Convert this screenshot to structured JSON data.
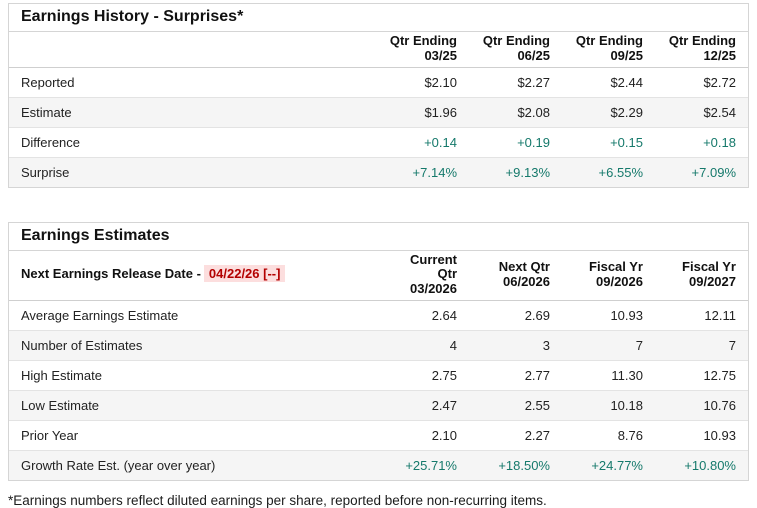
{
  "colors": {
    "positive_green": "#15796b",
    "alert_red": "#b30000",
    "alert_red_bg": "#fcdede",
    "row_alt_bg": "#f5f5f5",
    "border": "#d5d5d5"
  },
  "surprises": {
    "title": "Earnings History - Surprises*",
    "columns": [
      {
        "line1": "Qtr Ending",
        "line2": "03/25"
      },
      {
        "line1": "Qtr Ending",
        "line2": "06/25"
      },
      {
        "line1": "Qtr Ending",
        "line2": "09/25"
      },
      {
        "line1": "Qtr Ending",
        "line2": "12/25"
      }
    ],
    "rows": [
      {
        "label": "Reported",
        "values": [
          "$2.10",
          "$2.27",
          "$2.44",
          "$2.72"
        ]
      },
      {
        "label": "Estimate",
        "values": [
          "$1.96",
          "$2.08",
          "$2.29",
          "$2.54"
        ]
      },
      {
        "label": "Difference",
        "values": [
          "+0.14",
          "+0.19",
          "+0.15",
          "+0.18"
        ]
      },
      {
        "label": "Surprise",
        "values": [
          "+7.14%",
          "+9.13%",
          "+6.55%",
          "+7.09%"
        ]
      }
    ]
  },
  "estimates": {
    "title": "Earnings Estimates",
    "release_label": "Next Earnings Release Date -",
    "release_date": "04/22/26 [--]",
    "columns": [
      {
        "line1": "Current Qtr",
        "line2": "03/2026"
      },
      {
        "line1": "Next Qtr",
        "line2": "06/2026"
      },
      {
        "line1": "Fiscal Yr",
        "line2": "09/2026"
      },
      {
        "line1": "Fiscal Yr",
        "line2": "09/2027"
      }
    ],
    "rows": [
      {
        "label": "Average Earnings Estimate",
        "values": [
          "2.64",
          "2.69",
          "10.93",
          "12.11"
        ]
      },
      {
        "label": "Number of Estimates",
        "values": [
          "4",
          "3",
          "7",
          "7"
        ]
      },
      {
        "label": "High Estimate",
        "values": [
          "2.75",
          "2.77",
          "11.30",
          "12.75"
        ]
      },
      {
        "label": "Low Estimate",
        "values": [
          "2.47",
          "2.55",
          "10.18",
          "10.76"
        ]
      },
      {
        "label": "Prior Year",
        "values": [
          "2.10",
          "2.27",
          "8.76",
          "10.93"
        ]
      },
      {
        "label": "Growth Rate Est. (year over year)",
        "values": [
          "+25.71%",
          "+18.50%",
          "+24.77%",
          "+10.80%"
        ]
      }
    ]
  },
  "footnote": "*Earnings numbers reflect diluted earnings per share, reported before non-recurring items."
}
